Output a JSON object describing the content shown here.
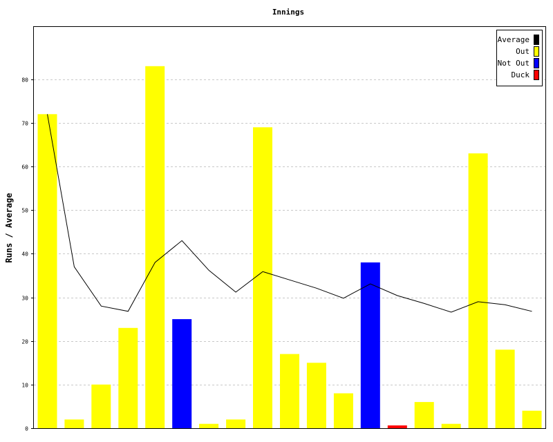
{
  "chart_data": {
    "type": "bar",
    "title": "Innings",
    "xlabel": "",
    "ylabel": "Runs / Average",
    "ylim": [
      0,
      92
    ],
    "yticks": [
      0,
      10,
      20,
      30,
      40,
      50,
      60,
      70,
      80
    ],
    "grid": true,
    "legend_position": "top-right",
    "legend": [
      {
        "label": "Average",
        "color": "#000000"
      },
      {
        "label": "Out",
        "color": "#ffff00"
      },
      {
        "label": "Not Out",
        "color": "#0000ff"
      },
      {
        "label": "Duck",
        "color": "#ff0000"
      }
    ],
    "bars": [
      {
        "value": 72,
        "status": "Out"
      },
      {
        "value": 2,
        "status": "Out"
      },
      {
        "value": 10,
        "status": "Out"
      },
      {
        "value": 23,
        "status": "Out"
      },
      {
        "value": 83,
        "status": "Out"
      },
      {
        "value": 25,
        "status": "Not Out"
      },
      {
        "value": 1,
        "status": "Out"
      },
      {
        "value": 2,
        "status": "Out"
      },
      {
        "value": 69,
        "status": "Out"
      },
      {
        "value": 17,
        "status": "Out"
      },
      {
        "value": 15,
        "status": "Out"
      },
      {
        "value": 8,
        "status": "Out"
      },
      {
        "value": 38,
        "status": "Not Out"
      },
      {
        "value": 0,
        "status": "Duck"
      },
      {
        "value": 6,
        "status": "Out"
      },
      {
        "value": 1,
        "status": "Out"
      },
      {
        "value": 63,
        "status": "Out"
      },
      {
        "value": 18,
        "status": "Out"
      },
      {
        "value": 4,
        "status": "Out"
      }
    ],
    "average": [
      72,
      37,
      28,
      26.8,
      38,
      43,
      36.2,
      31.2,
      35.9,
      34,
      32.1,
      29.8,
      33.1,
      30.4,
      28.6,
      26.6,
      29,
      28.3,
      26.8
    ]
  }
}
